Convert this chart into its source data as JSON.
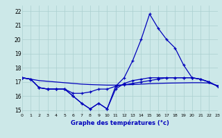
{
  "xlabel": "Graphe des températures (°c)",
  "background_color": "#cce8e8",
  "grid_color": "#aacfcf",
  "line_color": "#0000bb",
  "hours": [
    0,
    1,
    2,
    3,
    4,
    5,
    6,
    7,
    8,
    9,
    10,
    11,
    12,
    13,
    14,
    15,
    16,
    17,
    18,
    19,
    20,
    21,
    22,
    23
  ],
  "temp_main": [
    17.3,
    17.2,
    16.6,
    16.5,
    16.5,
    16.5,
    16.0,
    15.5,
    15.1,
    15.5,
    15.1,
    16.7,
    17.3,
    18.5,
    20.0,
    21.8,
    20.8,
    20.0,
    19.4,
    18.2,
    17.3,
    17.2,
    17.0,
    16.7
  ],
  "temp_line2": [
    17.3,
    17.2,
    16.6,
    16.5,
    16.5,
    16.5,
    16.2,
    16.2,
    16.3,
    16.5,
    16.5,
    16.7,
    16.8,
    16.9,
    17.0,
    17.1,
    17.2,
    17.3,
    17.3,
    17.3,
    17.3,
    17.2,
    17.0,
    16.7
  ],
  "temp_line3": [
    17.3,
    17.2,
    16.6,
    16.5,
    16.5,
    16.5,
    16.0,
    15.5,
    15.1,
    15.5,
    15.1,
    16.5,
    16.9,
    17.1,
    17.2,
    17.3,
    17.3,
    17.3,
    17.3,
    17.3,
    17.3,
    17.2,
    17.0,
    16.7
  ],
  "trend": [
    17.3,
    17.2,
    17.1,
    17.05,
    17.0,
    16.95,
    16.9,
    16.85,
    16.82,
    16.8,
    16.78,
    16.78,
    16.8,
    16.82,
    16.85,
    16.88,
    16.9,
    16.92,
    16.93,
    16.94,
    16.95,
    16.95,
    16.93,
    16.75
  ],
  "ylim": [
    14.8,
    22.4
  ],
  "xlim": [
    0,
    23
  ],
  "yticks": [
    15,
    16,
    17,
    18,
    19,
    20,
    21,
    22
  ],
  "xtick_labels": [
    "0",
    "1",
    "2",
    "3",
    "4",
    "5",
    "6",
    "7",
    "8",
    "9",
    "10",
    "11",
    "12",
    "13",
    "14",
    "15",
    "16",
    "17",
    "18",
    "19",
    "20",
    "21",
    "22",
    "23"
  ]
}
